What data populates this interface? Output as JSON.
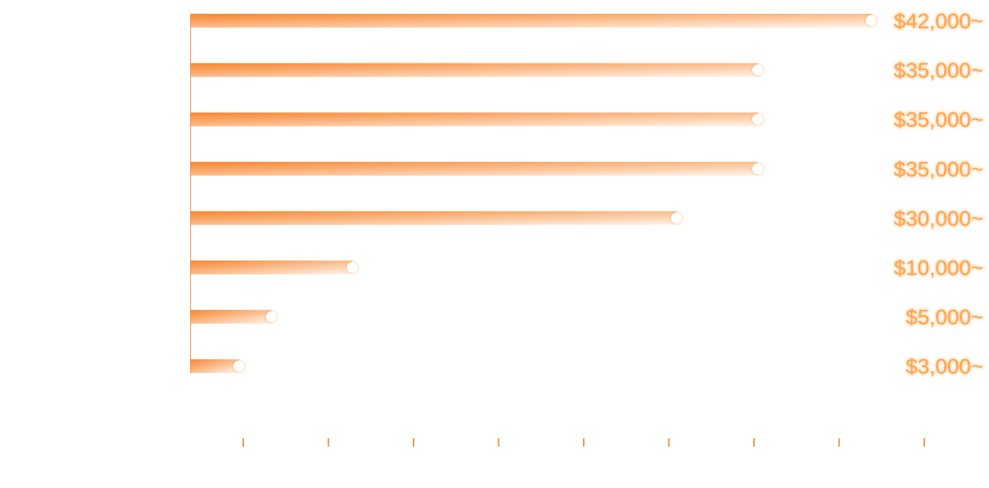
{
  "colors": {
    "accent": "#F7862F",
    "bar_fade": "#FFF4EA",
    "label": "#FFA54F",
    "label_glow": "#FFD6B0"
  },
  "chart_data": {
    "type": "bar",
    "orientation": "horizontal",
    "title": "",
    "xlabel": "",
    "ylabel": "",
    "values": [
      42000,
      35000,
      35000,
      35000,
      30000,
      10000,
      5000,
      3000
    ],
    "value_labels": [
      "$42,000~",
      "$35,000~",
      "$35,000~",
      "$35,000~",
      "$30,000~",
      "$10,000~",
      "$5,000~",
      "$3,000~"
    ],
    "xtick_count": 9,
    "grid": false,
    "legend": "none"
  }
}
